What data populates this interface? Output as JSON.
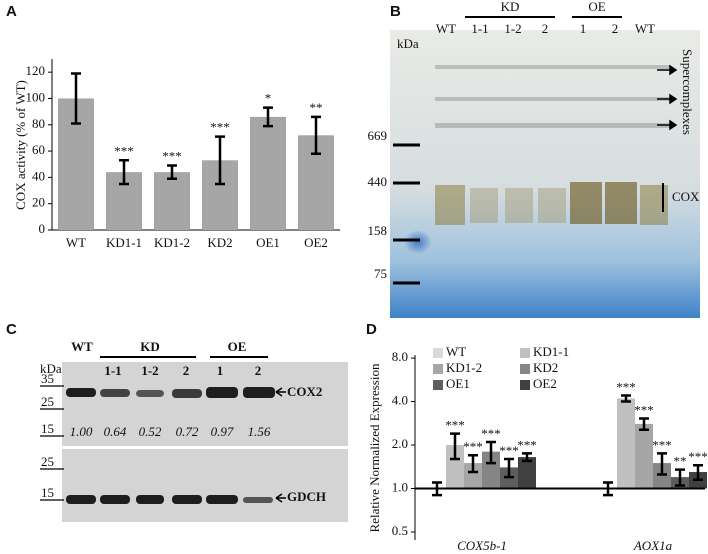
{
  "chart_data": [
    {
      "type": "bar",
      "panel": "A",
      "ylabel": "COX activity (% of WT)",
      "categories": [
        "WT",
        "KD1-1",
        "KD1-2",
        "KD2",
        "OE1",
        "OE2"
      ],
      "values": [
        100,
        44,
        44,
        53,
        86,
        72
      ],
      "errors": [
        19,
        9,
        5,
        18,
        7,
        14
      ],
      "annotations": [
        null,
        "***",
        "***",
        "***",
        "*",
        "**"
      ],
      "color": "#a6a6a6",
      "ylim": [
        0,
        130
      ],
      "yticks": [
        0,
        20,
        40,
        60,
        80,
        100,
        120
      ]
    },
    {
      "type": "grouped-bar",
      "panel": "D",
      "ylabel": "Relative Normalized Expression",
      "categories": [
        "COX5b-1",
        "AOX1a"
      ],
      "log_scale": true,
      "baseline": 1,
      "ylim": [
        0.44,
        8.4
      ],
      "yticks": [
        {
          "value": 0.5,
          "label": "0.5"
        },
        {
          "value": 1,
          "label": "1.0"
        },
        {
          "value": 2,
          "label": "2.0"
        },
        {
          "value": 4,
          "label": "4.0"
        },
        {
          "value": 8,
          "label": "8.0"
        }
      ],
      "series": [
        {
          "name": "WT",
          "color": "#d9d9d9",
          "values": [
            1.0,
            1.0
          ],
          "errors": [
            0.1,
            0.1
          ]
        },
        {
          "name": "KD1-1",
          "color": "#c0c0c0",
          "values": [
            2.0,
            4.2
          ],
          "errors": [
            0.4,
            0.2
          ],
          "annotations": [
            "***",
            "***"
          ]
        },
        {
          "name": "KD1-2",
          "color": "#a6a6a6",
          "values": [
            1.5,
            2.8
          ],
          "errors": [
            0.2,
            0.25
          ],
          "annotations": [
            "***",
            "***"
          ]
        },
        {
          "name": "KD2",
          "color": "#858585",
          "values": [
            1.8,
            1.5
          ],
          "errors": [
            0.3,
            0.25
          ],
          "annotations": [
            "***",
            "***"
          ]
        },
        {
          "name": "OE1",
          "color": "#5e5e5e",
          "values": [
            1.4,
            1.2
          ],
          "errors": [
            0.2,
            0.15
          ],
          "annotations": [
            "***",
            "**"
          ]
        },
        {
          "name": "OE2",
          "color": "#404040",
          "values": [
            1.65,
            1.3
          ],
          "errors": [
            0.1,
            0.15
          ],
          "annotations": [
            "***",
            "***"
          ]
        }
      ]
    }
  ],
  "gel_B": {
    "panel": "B",
    "groups": [
      "KD",
      "OE"
    ],
    "lanes": [
      "WT",
      "1-1",
      "1-2",
      "2",
      "1",
      "2",
      "WT"
    ],
    "unit": "kDa",
    "markers": [
      "669",
      "440",
      "158",
      "75"
    ],
    "bands": [
      "Supercomplexes",
      "COX"
    ]
  },
  "blot_C": {
    "panel": "C",
    "lanes_top": [
      "WT",
      "KD",
      "OE"
    ],
    "lanes": [
      "1-1",
      "1-2",
      "2",
      "1",
      "2"
    ],
    "unit": "kDa",
    "markers": [
      "35",
      "25",
      "15",
      "25",
      "15"
    ],
    "ratios": [
      "1.00",
      "0.64",
      "0.52",
      "0.72",
      "0.97",
      "1.56"
    ],
    "bands": [
      "COX2",
      "GDCH"
    ]
  }
}
